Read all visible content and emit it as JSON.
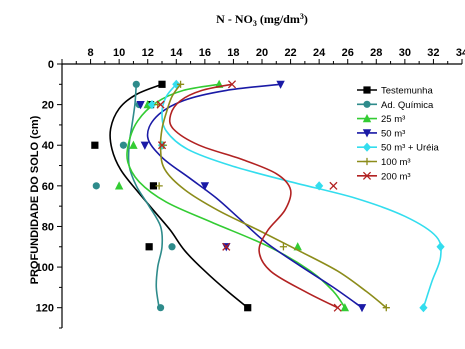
{
  "chart_data": {
    "type": "line",
    "title_main": "N - NO",
    "title_sub": "3",
    "title_unit": " (mg/dm",
    "title_sup": "3",
    "title_close": ")",
    "ylabel": "PROFUNDIDADE DO SOLO (cm)",
    "xlim": [
      6,
      34
    ],
    "ylim": [
      0,
      130
    ],
    "x_ticks": [
      8,
      10,
      12,
      14,
      16,
      18,
      20,
      22,
      24,
      26,
      28,
      30,
      32,
      34
    ],
    "y_ticks": [
      0,
      20,
      40,
      60,
      80,
      100,
      120
    ],
    "x_axis_position": "top",
    "y_axis_inverted": true,
    "grid": false,
    "legend_position": "right",
    "series": [
      {
        "name": "Testemunha",
        "color": "#000000",
        "marker": "square",
        "points": [
          [
            13.0,
            10
          ],
          [
            12.2,
            20
          ],
          [
            8.3,
            40
          ],
          [
            12.4,
            60
          ],
          [
            12.1,
            90
          ],
          [
            19.0,
            120
          ]
        ],
        "curve": [
          [
            13.0,
            10
          ],
          [
            11.2,
            15
          ],
          [
            10.0,
            22
          ],
          [
            9.4,
            32
          ],
          [
            9.5,
            42
          ],
          [
            10.1,
            52
          ],
          [
            11.2,
            62
          ],
          [
            12.4,
            72
          ],
          [
            13.6,
            82
          ],
          [
            14.6,
            92
          ],
          [
            16.0,
            102
          ],
          [
            17.6,
            112
          ],
          [
            19.0,
            120
          ]
        ]
      },
      {
        "name": "Ad. Química",
        "color": "#2e8b8b",
        "marker": "circle",
        "points": [
          [
            11.2,
            10
          ],
          [
            11.4,
            20
          ],
          [
            10.3,
            40
          ],
          [
            8.4,
            60
          ],
          [
            13.7,
            90
          ],
          [
            12.9,
            120
          ]
        ],
        "curve": [
          [
            11.2,
            10
          ],
          [
            11.1,
            20
          ],
          [
            10.9,
            30
          ],
          [
            10.7,
            40
          ],
          [
            10.7,
            50
          ],
          [
            11.2,
            60
          ],
          [
            12.1,
            70
          ],
          [
            12.9,
            80
          ],
          [
            13.0,
            90
          ],
          [
            12.7,
            100
          ],
          [
            12.6,
            110
          ],
          [
            12.8,
            120
          ]
        ]
      },
      {
        "name": "25 m³",
        "color": "#33cc33",
        "marker": "triangle",
        "points": [
          [
            17.0,
            10
          ],
          [
            12.0,
            20
          ],
          [
            11.0,
            40
          ],
          [
            10.0,
            60
          ],
          [
            22.5,
            90
          ],
          [
            25.8,
            120
          ]
        ],
        "curve": [
          [
            17.0,
            10
          ],
          [
            14.5,
            13
          ],
          [
            12.6,
            19
          ],
          [
            11.3,
            28
          ],
          [
            10.7,
            38
          ],
          [
            10.6,
            48
          ],
          [
            11.4,
            58
          ],
          [
            13.3,
            68
          ],
          [
            16.5,
            78
          ],
          [
            20.5,
            90
          ],
          [
            23.4,
            102
          ],
          [
            25.0,
            112
          ],
          [
            25.8,
            120
          ]
        ]
      },
      {
        "name": "50 m³",
        "color": "#1a1aa6",
        "marker": "triangle-down",
        "points": [
          [
            21.3,
            10
          ],
          [
            11.5,
            20
          ],
          [
            11.8,
            40
          ],
          [
            16.0,
            60
          ],
          [
            17.5,
            90
          ],
          [
            27.0,
            120
          ]
        ],
        "curve": [
          [
            21.3,
            10
          ],
          [
            17.5,
            13
          ],
          [
            14.5,
            18
          ],
          [
            12.6,
            26
          ],
          [
            12.0,
            36
          ],
          [
            13.0,
            46
          ],
          [
            14.9,
            56
          ],
          [
            16.8,
            66
          ],
          [
            18.4,
            76
          ],
          [
            20.3,
            88
          ],
          [
            22.8,
            100
          ],
          [
            25.0,
            110
          ],
          [
            27.0,
            120
          ]
        ]
      },
      {
        "name": "50 m³ + Uréia",
        "color": "#33ddee",
        "marker": "diamond",
        "points": [
          [
            14.0,
            10
          ],
          [
            12.3,
            20
          ],
          [
            13.0,
            40
          ],
          [
            24.0,
            60
          ],
          [
            32.5,
            90
          ],
          [
            31.3,
            120
          ]
        ],
        "curve": [
          [
            14.0,
            10
          ],
          [
            13.3,
            16
          ],
          [
            13.0,
            24
          ],
          [
            13.3,
            33
          ],
          [
            14.8,
            42
          ],
          [
            17.8,
            50
          ],
          [
            22.0,
            58
          ],
          [
            26.5,
            66
          ],
          [
            30.0,
            75
          ],
          [
            32.2,
            85
          ],
          [
            32.5,
            95
          ],
          [
            31.9,
            107
          ],
          [
            31.3,
            120
          ]
        ]
      },
      {
        "name": "100 m³",
        "color": "#8c8c1a",
        "marker": "plus",
        "points": [
          [
            14.3,
            10
          ],
          [
            12.7,
            20
          ],
          [
            13.1,
            40
          ],
          [
            12.8,
            60
          ],
          [
            21.5,
            90
          ],
          [
            28.7,
            120
          ]
        ],
        "curve": [
          [
            14.3,
            10
          ],
          [
            13.7,
            16
          ],
          [
            13.3,
            24
          ],
          [
            13.0,
            32
          ],
          [
            12.9,
            42
          ],
          [
            13.2,
            52
          ],
          [
            14.6,
            62
          ],
          [
            16.9,
            72
          ],
          [
            19.8,
            82
          ],
          [
            22.6,
            92
          ],
          [
            25.3,
            102
          ],
          [
            27.3,
            112
          ],
          [
            28.7,
            120
          ]
        ]
      },
      {
        "name": "200 m³",
        "color": "#b22222",
        "marker": "x",
        "points": [
          [
            17.9,
            10
          ],
          [
            12.9,
            20
          ],
          [
            13.0,
            40
          ],
          [
            25.0,
            60
          ],
          [
            17.5,
            90
          ],
          [
            25.3,
            120
          ]
        ],
        "curve": [
          [
            17.9,
            10
          ],
          [
            15.8,
            13
          ],
          [
            14.3,
            18
          ],
          [
            13.6,
            25
          ],
          [
            13.8,
            32
          ],
          [
            15.6,
            40
          ],
          [
            18.6,
            47
          ],
          [
            21.0,
            54
          ],
          [
            22.0,
            62
          ],
          [
            21.6,
            72
          ],
          [
            20.4,
            82
          ],
          [
            19.8,
            92
          ],
          [
            20.6,
            102
          ],
          [
            23.0,
            112
          ],
          [
            25.3,
            120
          ]
        ]
      }
    ]
  }
}
